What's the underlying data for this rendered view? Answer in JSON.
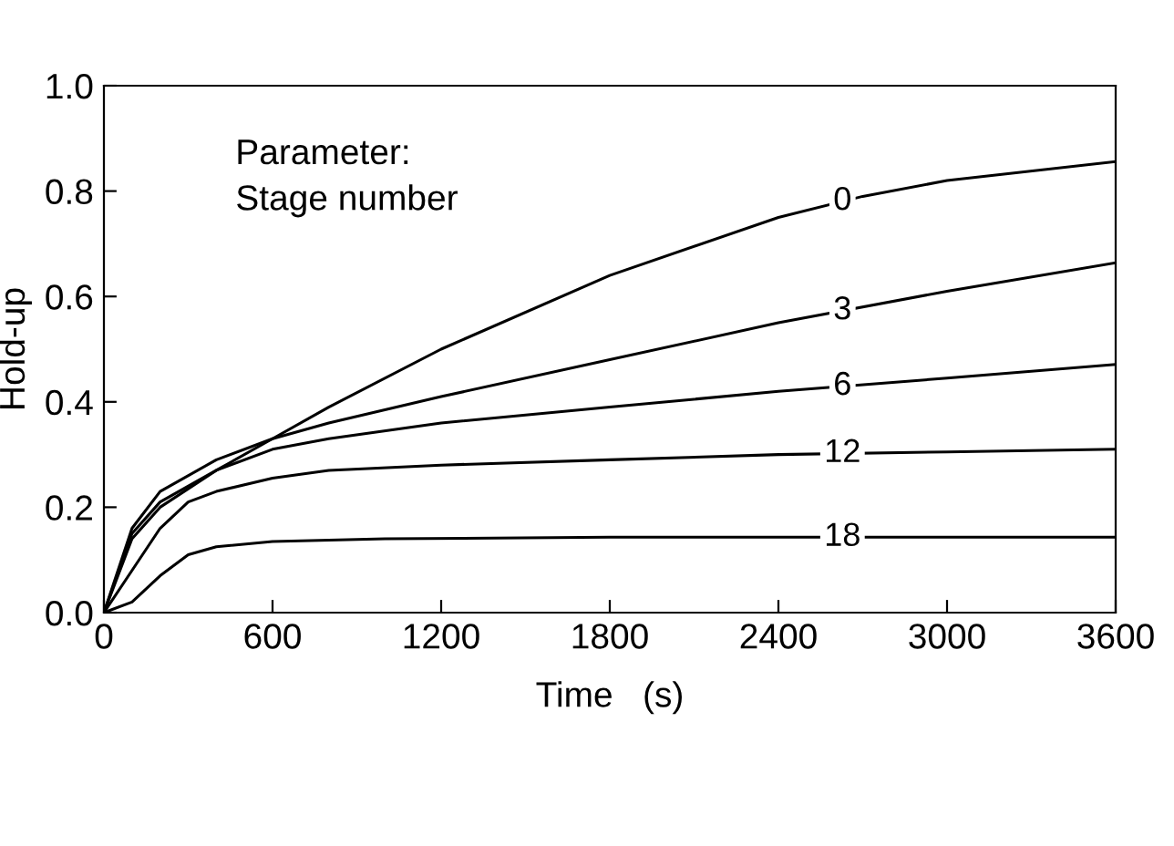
{
  "chart_data": {
    "type": "line",
    "xlabel": "Time   (s)",
    "ylabel": "Hold-up",
    "xlim": [
      0,
      3600
    ],
    "xticks": [
      0,
      600,
      1200,
      1800,
      2400,
      3000,
      3600
    ],
    "ylim": [
      0,
      1.0
    ],
    "yticks": [
      {
        "value": 0,
        "label": "0.0"
      },
      {
        "value": 0.2,
        "label": "0.2"
      },
      {
        "value": 0.4,
        "label": "0.4"
      },
      {
        "value": 0.6,
        "label": "0.6"
      },
      {
        "value": 0.8,
        "label": "0.8"
      },
      {
        "value": 1.0,
        "label": "1.0"
      }
    ],
    "grid": false,
    "legend": false,
    "marker": "none",
    "line_style": "solid",
    "series": [
      {
        "name": "0",
        "color": "#000000",
        "x": [
          0,
          100,
          200,
          400,
          600,
          800,
          1200,
          1800,
          2400,
          2700,
          3000,
          3600
        ],
        "values": [
          0,
          0.14,
          0.2,
          0.27,
          0.33,
          0.39,
          0.5,
          0.64,
          0.75,
          0.79,
          0.82,
          0.856
        ]
      },
      {
        "name": "3",
        "color": "#000000",
        "x": [
          0,
          100,
          200,
          400,
          600,
          800,
          1200,
          1800,
          2400,
          3000,
          3600
        ],
        "values": [
          0,
          0.16,
          0.23,
          0.29,
          0.33,
          0.36,
          0.41,
          0.48,
          0.55,
          0.61,
          0.664
        ]
      },
      {
        "name": "6",
        "color": "#000000",
        "x": [
          0,
          100,
          200,
          400,
          600,
          800,
          1200,
          1800,
          2400,
          3000,
          3600
        ],
        "values": [
          0,
          0.15,
          0.21,
          0.27,
          0.31,
          0.33,
          0.36,
          0.39,
          0.42,
          0.445,
          0.471
        ]
      },
      {
        "name": "12",
        "color": "#000000",
        "x": [
          0,
          100,
          200,
          300,
          400,
          600,
          800,
          1200,
          1800,
          2400,
          3000,
          3600
        ],
        "values": [
          0,
          0.08,
          0.16,
          0.21,
          0.23,
          0.255,
          0.27,
          0.28,
          0.29,
          0.3,
          0.305,
          0.31
        ]
      },
      {
        "name": "18",
        "color": "#000000",
        "x": [
          0,
          100,
          200,
          300,
          400,
          600,
          1000,
          1800,
          3600
        ],
        "values": [
          0,
          0.02,
          0.07,
          0.11,
          0.125,
          0.135,
          0.14,
          0.143,
          0.143
        ]
      }
    ],
    "annotations": [
      "Parameter:\nStage number"
    ]
  }
}
